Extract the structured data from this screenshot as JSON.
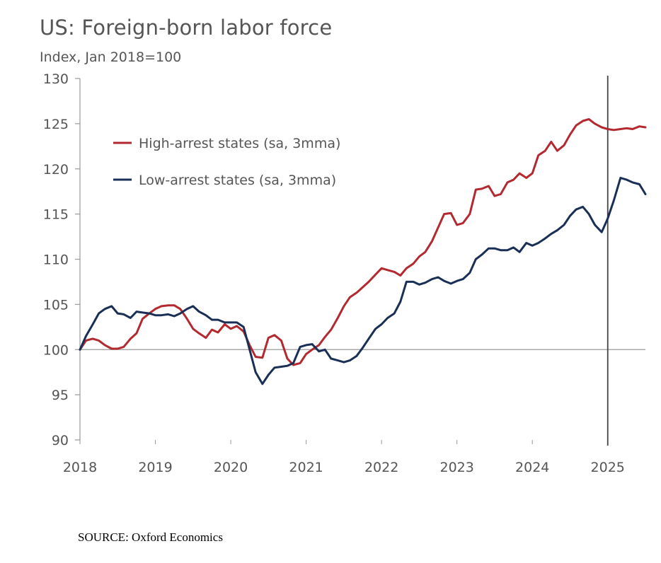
{
  "chart_data": {
    "type": "line",
    "title": "US: Foreign-born labor force",
    "subtitle": "Index, Jan 2018=100",
    "ylim": [
      90,
      130
    ],
    "yticks": [
      90,
      95,
      100,
      105,
      110,
      115,
      120,
      125,
      130
    ],
    "xlim": [
      2018,
      2025.5
    ],
    "xticks": [
      "2018",
      "2019",
      "2020",
      "2021",
      "2022",
      "2023",
      "2024",
      "2025"
    ],
    "baseline": 100,
    "vline": 2025,
    "legend_position": "top-left",
    "series": [
      {
        "name": "High-arrest states (sa, 3mma)",
        "color": "#b22a30",
        "points": [
          [
            2018.0,
            100
          ],
          [
            2018.08,
            101
          ],
          [
            2018.17,
            101.2
          ],
          [
            2018.25,
            101
          ],
          [
            2018.33,
            100.5
          ],
          [
            2018.42,
            100.1
          ],
          [
            2018.5,
            100.1
          ],
          [
            2018.58,
            100.3
          ],
          [
            2018.67,
            101.2
          ],
          [
            2018.75,
            101.8
          ],
          [
            2018.83,
            103.4
          ],
          [
            2018.92,
            104
          ],
          [
            2019.0,
            104.5
          ],
          [
            2019.08,
            104.8
          ],
          [
            2019.17,
            104.9
          ],
          [
            2019.25,
            104.9
          ],
          [
            2019.33,
            104.5
          ],
          [
            2019.42,
            103.4
          ],
          [
            2019.5,
            102.3
          ],
          [
            2019.58,
            101.8
          ],
          [
            2019.67,
            101.3
          ],
          [
            2019.75,
            102.2
          ],
          [
            2019.83,
            101.9
          ],
          [
            2019.92,
            102.8
          ],
          [
            2020.0,
            102.3
          ],
          [
            2020.08,
            102.6
          ],
          [
            2020.17,
            102
          ],
          [
            2020.25,
            100.5
          ],
          [
            2020.33,
            99.2
          ],
          [
            2020.42,
            99.1
          ],
          [
            2020.5,
            101.3
          ],
          [
            2020.58,
            101.6
          ],
          [
            2020.67,
            101
          ],
          [
            2020.75,
            99
          ],
          [
            2020.83,
            98.3
          ],
          [
            2020.92,
            98.5
          ],
          [
            2021.0,
            99.5
          ],
          [
            2021.08,
            100
          ],
          [
            2021.17,
            100.5
          ],
          [
            2021.25,
            101.4
          ],
          [
            2021.33,
            102.2
          ],
          [
            2021.42,
            103.5
          ],
          [
            2021.5,
            104.8
          ],
          [
            2021.58,
            105.8
          ],
          [
            2021.67,
            106.3
          ],
          [
            2021.75,
            106.9
          ],
          [
            2021.83,
            107.5
          ],
          [
            2021.92,
            108.3
          ],
          [
            2022.0,
            109
          ],
          [
            2022.08,
            108.8
          ],
          [
            2022.17,
            108.6
          ],
          [
            2022.25,
            108.2
          ],
          [
            2022.33,
            109
          ],
          [
            2022.42,
            109.5
          ],
          [
            2022.5,
            110.3
          ],
          [
            2022.58,
            110.8
          ],
          [
            2022.67,
            112
          ],
          [
            2022.75,
            113.5
          ],
          [
            2022.83,
            115
          ],
          [
            2022.92,
            115.1
          ],
          [
            2023.0,
            113.8
          ],
          [
            2023.08,
            114
          ],
          [
            2023.17,
            115
          ],
          [
            2023.25,
            117.7
          ],
          [
            2023.33,
            117.8
          ],
          [
            2023.42,
            118.1
          ],
          [
            2023.5,
            117
          ],
          [
            2023.58,
            117.2
          ],
          [
            2023.67,
            118.5
          ],
          [
            2023.75,
            118.8
          ],
          [
            2023.83,
            119.5
          ],
          [
            2023.92,
            119
          ],
          [
            2024.0,
            119.5
          ],
          [
            2024.08,
            121.5
          ],
          [
            2024.17,
            122
          ],
          [
            2024.25,
            123
          ],
          [
            2024.33,
            122
          ],
          [
            2024.42,
            122.6
          ],
          [
            2024.5,
            123.8
          ],
          [
            2024.58,
            124.8
          ],
          [
            2024.67,
            125.3
          ],
          [
            2024.75,
            125.5
          ],
          [
            2024.83,
            125
          ],
          [
            2024.92,
            124.6
          ],
          [
            2025.0,
            124.4
          ],
          [
            2025.08,
            124.3
          ],
          [
            2025.17,
            124.4
          ],
          [
            2025.25,
            124.5
          ],
          [
            2025.33,
            124.4
          ],
          [
            2025.42,
            124.7
          ],
          [
            2025.5,
            124.6
          ]
        ]
      },
      {
        "name": "Low-arrest states (sa, 3mma)",
        "color": "#1a2f55",
        "points": [
          [
            2018.0,
            100
          ],
          [
            2018.08,
            101.5
          ],
          [
            2018.17,
            102.8
          ],
          [
            2018.25,
            104
          ],
          [
            2018.33,
            104.5
          ],
          [
            2018.42,
            104.8
          ],
          [
            2018.5,
            104
          ],
          [
            2018.58,
            103.9
          ],
          [
            2018.67,
            103.5
          ],
          [
            2018.75,
            104.2
          ],
          [
            2018.83,
            104.1
          ],
          [
            2018.92,
            104
          ],
          [
            2019.0,
            103.8
          ],
          [
            2019.08,
            103.8
          ],
          [
            2019.17,
            103.9
          ],
          [
            2019.25,
            103.7
          ],
          [
            2019.33,
            104
          ],
          [
            2019.42,
            104.5
          ],
          [
            2019.5,
            104.8
          ],
          [
            2019.58,
            104.2
          ],
          [
            2019.67,
            103.8
          ],
          [
            2019.75,
            103.3
          ],
          [
            2019.83,
            103.3
          ],
          [
            2019.92,
            103
          ],
          [
            2020.0,
            103
          ],
          [
            2020.08,
            103
          ],
          [
            2020.17,
            102.5
          ],
          [
            2020.25,
            100
          ],
          [
            2020.33,
            97.5
          ],
          [
            2020.42,
            96.2
          ],
          [
            2020.5,
            97.2
          ],
          [
            2020.58,
            98
          ],
          [
            2020.67,
            98.1
          ],
          [
            2020.75,
            98.2
          ],
          [
            2020.83,
            98.5
          ],
          [
            2020.92,
            100.3
          ],
          [
            2021.0,
            100.5
          ],
          [
            2021.08,
            100.6
          ],
          [
            2021.17,
            99.8
          ],
          [
            2021.25,
            100
          ],
          [
            2021.33,
            99
          ],
          [
            2021.42,
            98.8
          ],
          [
            2021.5,
            98.6
          ],
          [
            2021.58,
            98.8
          ],
          [
            2021.67,
            99.3
          ],
          [
            2021.75,
            100.2
          ],
          [
            2021.83,
            101.2
          ],
          [
            2021.92,
            102.3
          ],
          [
            2022.0,
            102.8
          ],
          [
            2022.08,
            103.5
          ],
          [
            2022.17,
            104
          ],
          [
            2022.25,
            105.3
          ],
          [
            2022.33,
            107.5
          ],
          [
            2022.42,
            107.5
          ],
          [
            2022.5,
            107.2
          ],
          [
            2022.58,
            107.4
          ],
          [
            2022.67,
            107.8
          ],
          [
            2022.75,
            108
          ],
          [
            2022.83,
            107.6
          ],
          [
            2022.92,
            107.3
          ],
          [
            2023.0,
            107.6
          ],
          [
            2023.08,
            107.8
          ],
          [
            2023.17,
            108.5
          ],
          [
            2023.25,
            110
          ],
          [
            2023.33,
            110.5
          ],
          [
            2023.42,
            111.2
          ],
          [
            2023.5,
            111.2
          ],
          [
            2023.58,
            111
          ],
          [
            2023.67,
            111
          ],
          [
            2023.75,
            111.3
          ],
          [
            2023.83,
            110.8
          ],
          [
            2023.92,
            111.8
          ],
          [
            2024.0,
            111.5
          ],
          [
            2024.08,
            111.8
          ],
          [
            2024.17,
            112.3
          ],
          [
            2024.25,
            112.8
          ],
          [
            2024.33,
            113.2
          ],
          [
            2024.42,
            113.8
          ],
          [
            2024.5,
            114.8
          ],
          [
            2024.58,
            115.5
          ],
          [
            2024.67,
            115.8
          ],
          [
            2024.75,
            115
          ],
          [
            2024.83,
            113.8
          ],
          [
            2024.92,
            113
          ],
          [
            2025.0,
            114.5
          ],
          [
            2025.08,
            116.5
          ],
          [
            2025.17,
            119
          ],
          [
            2025.25,
            118.8
          ],
          [
            2025.33,
            118.5
          ],
          [
            2025.42,
            118.3
          ],
          [
            2025.5,
            117.2
          ]
        ]
      }
    ],
    "source": "SOURCE: Oxford Economics"
  }
}
